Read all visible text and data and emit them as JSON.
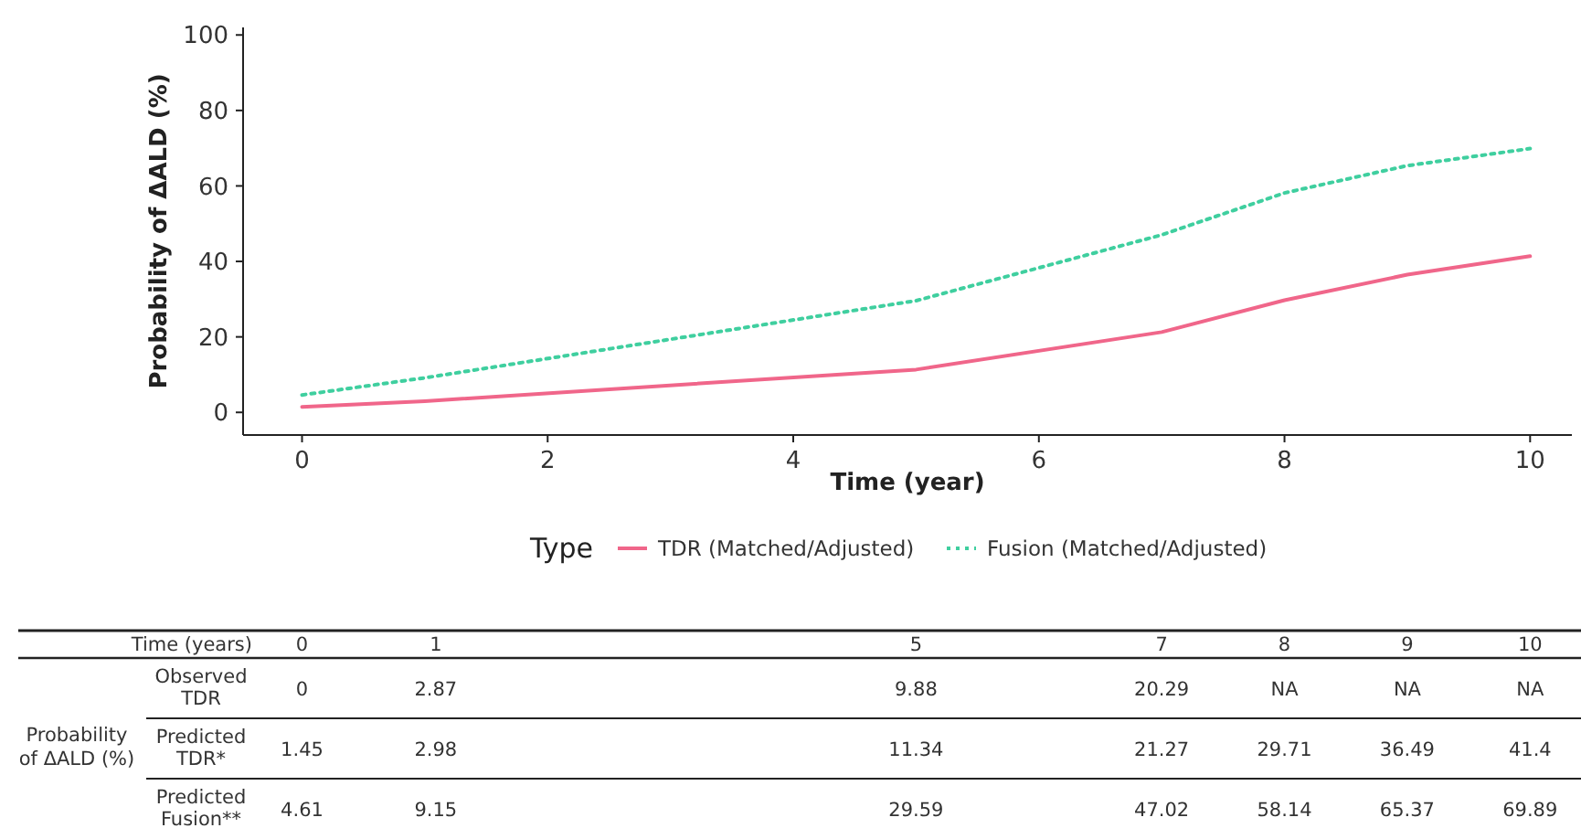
{
  "chart_data": {
    "type": "line",
    "xlabel": "Time (year)",
    "ylabel": "Probability of ΔALD (%)",
    "legend_title": "Type",
    "legend": "bottom",
    "x": [
      0,
      1,
      5,
      7,
      8,
      9,
      10
    ],
    "xlim": [
      -0.48,
      10.34
    ],
    "xticks": [
      0,
      2,
      4,
      6,
      8,
      10
    ],
    "ylim": [
      -6,
      102
    ],
    "yticks": [
      0,
      20,
      40,
      60,
      80,
      100
    ],
    "series": [
      {
        "name": "TDR (Matched/Adjusted)",
        "color": "#f0668a",
        "line_style": "solid",
        "values": [
          1.45,
          2.98,
          11.34,
          21.27,
          29.71,
          36.49,
          41.4
        ]
      },
      {
        "name": "Fusion (Matched/Adjusted)",
        "color": "#3fcf9f",
        "line_style": "dotted",
        "values": [
          4.61,
          9.15,
          29.59,
          47.02,
          58.14,
          65.37,
          69.89
        ]
      }
    ],
    "annotations": [
      "Time (years)",
      "0",
      "1",
      "5",
      "7",
      "8",
      "9",
      "10",
      "Probability of ΔALD (%)",
      "Observed TDR",
      "0",
      "2.87",
      "9.88",
      "20.29",
      "NA",
      "NA",
      "NA",
      "Predicted TDR*",
      "1.45",
      "2.98",
      "11.34",
      "21.27",
      "29.71",
      "36.49",
      "41.4",
      "Predicted Fusion**",
      "4.61",
      "9.15",
      "29.59",
      "47.02",
      "58.14",
      "65.37",
      "69.89"
    ]
  }
}
